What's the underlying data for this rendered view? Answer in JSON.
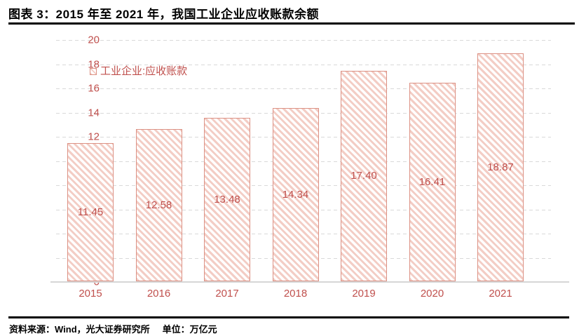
{
  "header": {
    "title": "图表 3：2015 年至 2021 年，我国工业企业应收账款余额"
  },
  "legend": {
    "label": "工业企业:应收账款"
  },
  "footer": {
    "source": "资料来源：Wind，光大证券研究所",
    "unit": "单位：万亿元"
  },
  "colors": {
    "text_red": "#C0504D",
    "bar_border": "#DC9184",
    "bar_hatch": "#F3CDC5",
    "gridline": "#D9D9D9",
    "axis_line": "#D6D6D6",
    "rule_black": "#000000"
  },
  "chart_data": {
    "type": "bar",
    "title": "2015 年至 2021 年，我国工业企业应收账款余额",
    "categories": [
      "2015",
      "2016",
      "2017",
      "2018",
      "2019",
      "2020",
      "2021"
    ],
    "series": [
      {
        "name": "工业企业:应收账款",
        "values": [
          11.45,
          12.58,
          13.48,
          14.34,
          17.4,
          16.41,
          18.87
        ]
      }
    ],
    "value_labels": [
      "11.45",
      "12.58",
      "13.48",
      "14.34",
      "17.40",
      "16.41",
      "18.87"
    ],
    "xlabel": "",
    "ylabel": "",
    "unit": "万亿元",
    "ylim": [
      0,
      20
    ],
    "yticks": [
      0,
      2,
      4,
      6,
      8,
      10,
      12,
      14,
      16,
      18,
      20
    ],
    "grid": "horizontal-dashed",
    "legend_position": "inside-upper-left",
    "bar_style": "white fill with salmon diagonal hatch and salmon border, value label centered inside bar"
  }
}
